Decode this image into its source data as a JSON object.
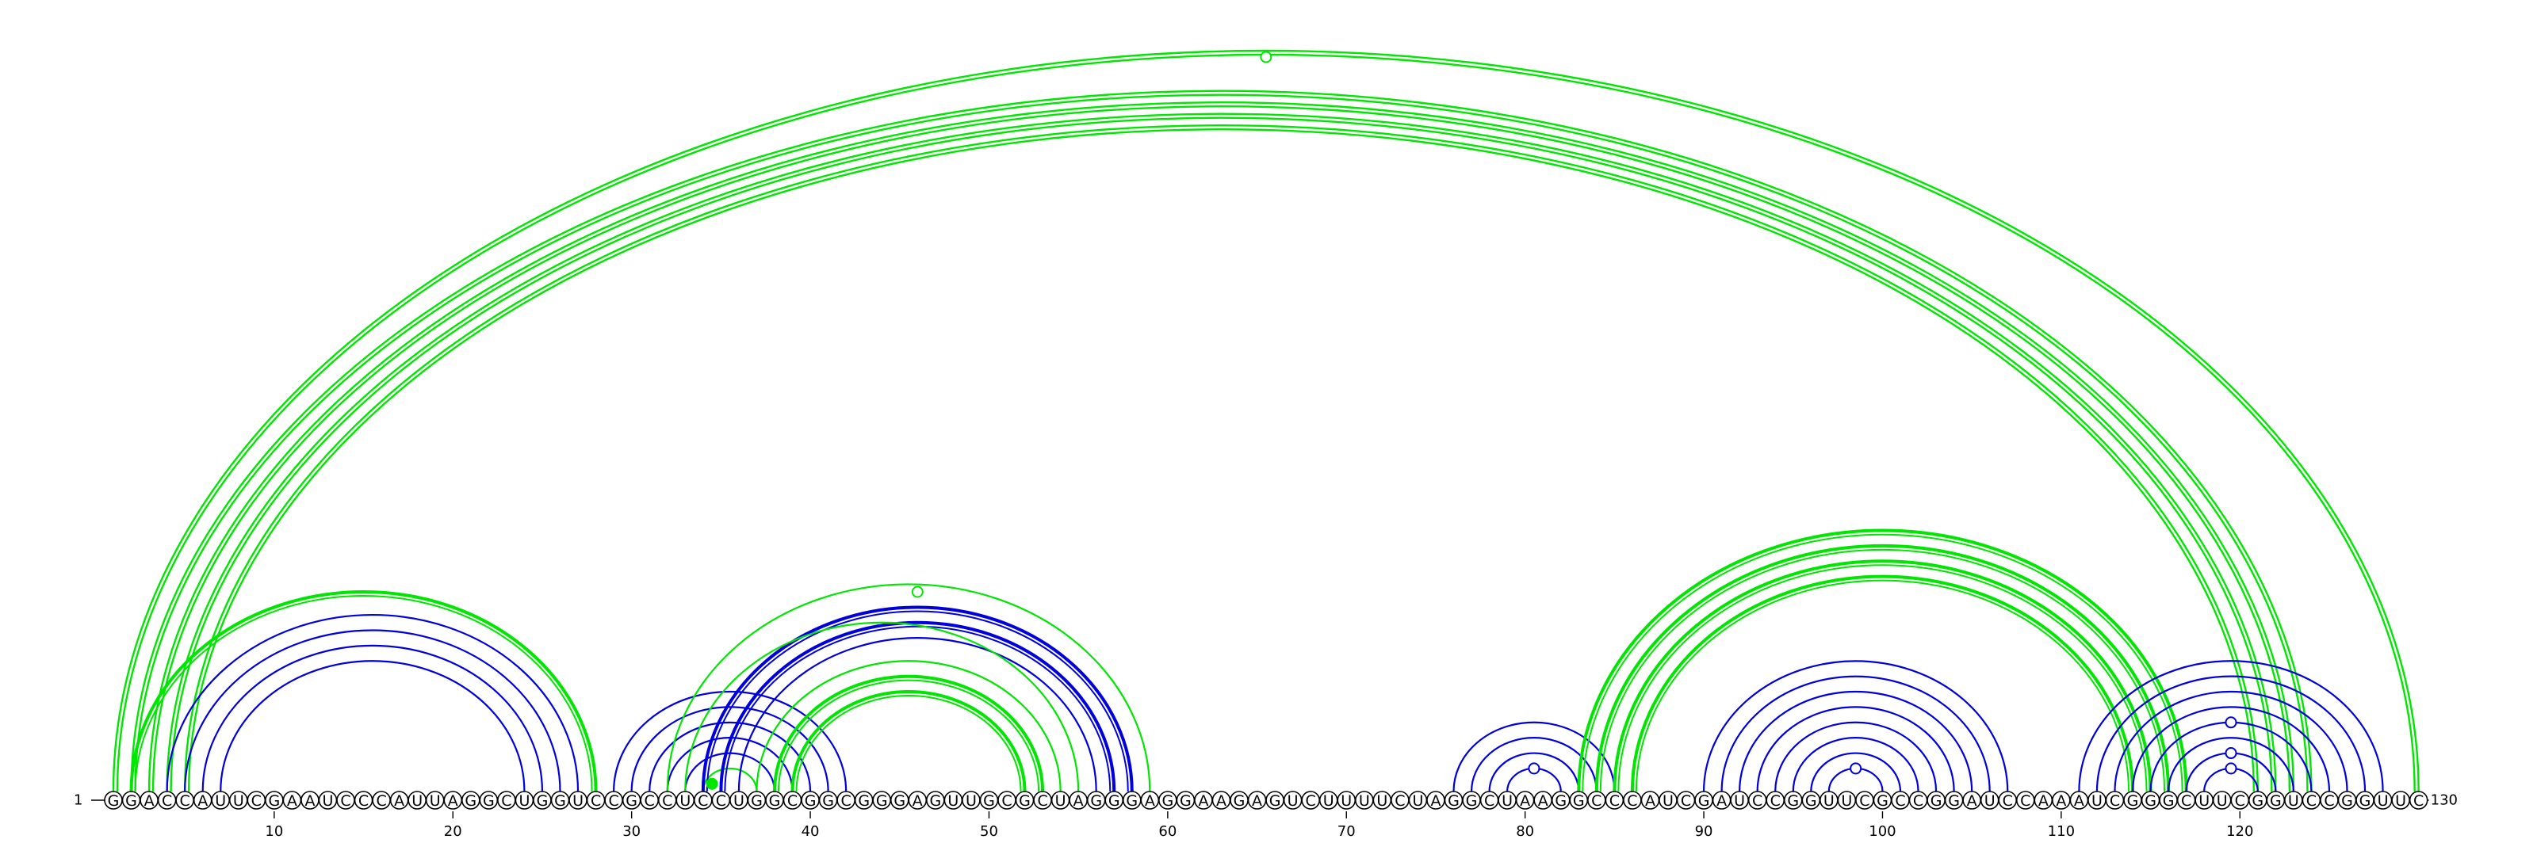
{
  "diagram": {
    "sequence": "GGACCAUUCGAAUCCCAUUAGGCUGGUCCGCCUCCUGGCGGCGGGAGUUGCGCUAGGGAGGAAGAGUCUUUUCUAGGCUAAGGCCCAUCGAUCCGGUUCGCCGGAUCCAAAUCGGGCUUCGGUCCGGUUC",
    "start_label": "1",
    "end_label": "130",
    "ticks": [
      10,
      20,
      30,
      40,
      50,
      60,
      70,
      80,
      90,
      100,
      110,
      120
    ],
    "colors": {
      "green": "#00e600",
      "blue": "#0000dd"
    },
    "upper_arcs": [
      {
        "i": 1,
        "j": 130,
        "color": "green",
        "width": 2.4
      },
      {
        "i": 2,
        "j": 124,
        "color": "green",
        "width": 2.4
      },
      {
        "i": 3,
        "j": 123,
        "color": "green",
        "width": 2.4
      },
      {
        "i": 4,
        "j": 122,
        "color": "green",
        "width": 2.4
      },
      {
        "i": 5,
        "j": 121,
        "color": "green",
        "width": 2.4
      }
    ],
    "upper_marker": {
      "i": 1,
      "j": 130,
      "color": "green"
    },
    "lower_arcs": [
      {
        "i": 2,
        "j": 28,
        "color": "green",
        "width": 4
      },
      {
        "i": 4,
        "j": 27,
        "color": "blue",
        "width": 2.2
      },
      {
        "i": 5,
        "j": 26,
        "color": "blue",
        "width": 2.2
      },
      {
        "i": 6,
        "j": 25,
        "color": "blue",
        "width": 2.2
      },
      {
        "i": 7,
        "j": 24,
        "color": "blue",
        "width": 2.2
      },
      {
        "i": 29,
        "j": 42,
        "color": "blue",
        "width": 2.2
      },
      {
        "i": 30,
        "j": 41,
        "color": "blue",
        "width": 2.2
      },
      {
        "i": 31,
        "j": 40,
        "color": "blue",
        "width": 2.2
      },
      {
        "i": 32,
        "j": 39,
        "color": "blue",
        "width": 2.2
      },
      {
        "i": 33,
        "j": 38,
        "color": "blue",
        "width": 2.2
      },
      {
        "i": 34,
        "j": 37,
        "color": "green",
        "width": 2.2
      },
      {
        "i": 34,
        "j": 58,
        "color": "blue",
        "width": 4
      },
      {
        "i": 35,
        "j": 57,
        "color": "blue",
        "width": 4
      },
      {
        "i": 36,
        "j": 56,
        "color": "blue",
        "width": 2.2
      },
      {
        "i": 32,
        "j": 59,
        "color": "green",
        "width": 2.2
      },
      {
        "i": 33,
        "j": 55,
        "color": "green",
        "width": 2.2
      },
      {
        "i": 37,
        "j": 54,
        "color": "green",
        "width": 2.2
      },
      {
        "i": 38,
        "j": 53,
        "color": "green",
        "width": 4
      },
      {
        "i": 39,
        "j": 52,
        "color": "green",
        "width": 4
      },
      {
        "i": 76,
        "j": 85,
        "color": "blue",
        "width": 2.2
      },
      {
        "i": 77,
        "j": 84,
        "color": "blue",
        "width": 2.2
      },
      {
        "i": 78,
        "j": 83,
        "color": "blue",
        "width": 2.2
      },
      {
        "i": 79,
        "j": 82,
        "color": "blue",
        "width": 2.2
      },
      {
        "i": 83,
        "j": 117,
        "color": "green",
        "width": 4
      },
      {
        "i": 84,
        "j": 116,
        "color": "green",
        "width": 4
      },
      {
        "i": 85,
        "j": 115,
        "color": "green",
        "width": 4
      },
      {
        "i": 86,
        "j": 114,
        "color": "green",
        "width": 4
      },
      {
        "i": 90,
        "j": 107,
        "color": "blue",
        "width": 2.2
      },
      {
        "i": 91,
        "j": 106,
        "color": "blue",
        "width": 2.2
      },
      {
        "i": 92,
        "j": 105,
        "color": "blue",
        "width": 2.2
      },
      {
        "i": 93,
        "j": 104,
        "color": "blue",
        "width": 2.2
      },
      {
        "i": 94,
        "j": 103,
        "color": "blue",
        "width": 2.2
      },
      {
        "i": 95,
        "j": 102,
        "color": "blue",
        "width": 2.2
      },
      {
        "i": 96,
        "j": 101,
        "color": "blue",
        "width": 2.2
      },
      {
        "i": 97,
        "j": 100,
        "color": "blue",
        "width": 2.2
      },
      {
        "i": 111,
        "j": 128,
        "color": "blue",
        "width": 2.2
      },
      {
        "i": 112,
        "j": 127,
        "color": "blue",
        "width": 2.2
      },
      {
        "i": 113,
        "j": 126,
        "color": "blue",
        "width": 2.2
      },
      {
        "i": 114,
        "j": 125,
        "color": "blue",
        "width": 2.2
      },
      {
        "i": 115,
        "j": 124,
        "color": "blue",
        "width": 2.2
      },
      {
        "i": 116,
        "j": 123,
        "color": "blue",
        "width": 2.2
      },
      {
        "i": 117,
        "j": 122,
        "color": "blue",
        "width": 2.2
      },
      {
        "i": 118,
        "j": 121,
        "color": "blue",
        "width": 2.2
      }
    ],
    "lower_markers": [
      {
        "i": 33,
        "j": 59,
        "color": "green",
        "style": "open"
      },
      {
        "i": 34,
        "j": 35,
        "color": "green",
        "style": "filled"
      },
      {
        "i": 79,
        "j": 82,
        "color": "blue",
        "style": "open"
      },
      {
        "i": 97,
        "j": 100,
        "color": "blue",
        "style": "open"
      },
      {
        "i": 118,
        "j": 121,
        "color": "blue",
        "style": "open"
      },
      {
        "i": 117,
        "j": 122,
        "color": "blue",
        "style": "open"
      },
      {
        "i": 115,
        "j": 124,
        "color": "blue",
        "style": "open"
      }
    ]
  }
}
